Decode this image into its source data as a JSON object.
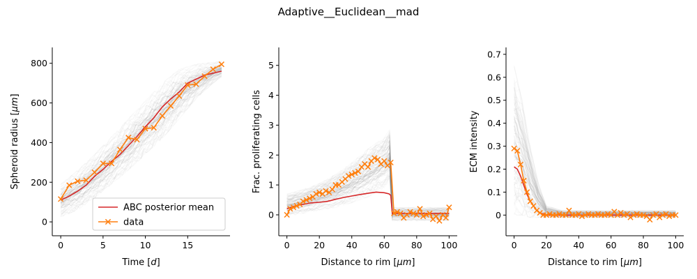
{
  "title": "Adaptive__Euclidean__mad",
  "colors": {
    "posterior_mean": "#d62728",
    "data": "#ff7f0e",
    "samples": "#808080"
  },
  "chart_data": [
    {
      "type": "line",
      "name": "panel-spheroid-radius",
      "xlabel": "Time [d]",
      "ylabel": "Spheroid radius [μm]",
      "xlim": [
        -1,
        20
      ],
      "ylim": [
        -70,
        880
      ],
      "xticks": [
        0,
        5,
        10,
        15
      ],
      "yticks": [
        0,
        200,
        400,
        600,
        800
      ],
      "legend": {
        "placement": "lower-right",
        "entries": [
          "ABC posterior mean",
          "data"
        ]
      },
      "band": {
        "x": [
          0,
          2,
          4,
          6,
          8,
          10,
          12,
          14,
          16,
          18,
          19
        ],
        "low": [
          25,
          60,
          120,
          190,
          260,
          340,
          420,
          520,
          620,
          700,
          730
        ],
        "high": [
          190,
          260,
          340,
          430,
          520,
          610,
          700,
          770,
          795,
          805,
          810
        ]
      },
      "series": [
        {
          "name": "ABC posterior mean",
          "x": [
            0,
            1,
            2,
            3,
            4,
            5,
            6,
            7,
            8,
            9,
            10,
            11,
            12,
            13,
            14,
            15,
            16,
            17,
            18,
            19
          ],
          "values": [
            110,
            130,
            155,
            185,
            230,
            265,
            305,
            340,
            385,
            430,
            480,
            525,
            580,
            620,
            655,
            700,
            720,
            740,
            750,
            760
          ]
        },
        {
          "name": "data",
          "x": [
            0,
            1,
            2,
            3,
            4,
            5,
            6,
            7,
            8,
            9,
            10,
            11,
            12,
            13,
            14,
            15,
            16,
            17,
            18,
            19
          ],
          "values": [
            115,
            185,
            205,
            210,
            250,
            295,
            295,
            365,
            425,
            415,
            470,
            475,
            535,
            585,
            635,
            690,
            695,
            735,
            770,
            795
          ]
        }
      ]
    },
    {
      "type": "line",
      "name": "panel-proliferating-cells",
      "xlabel": "Distance to rim [μm]",
      "ylabel": "Frac. proliferating cells",
      "xlim": [
        -5,
        105
      ],
      "ylim": [
        -0.7,
        5.6
      ],
      "xticks": [
        0,
        20,
        40,
        60,
        80,
        100
      ],
      "yticks": [
        0,
        1,
        2,
        3,
        4,
        5
      ],
      "band": {
        "x": [
          0,
          10,
          20,
          30,
          40,
          50,
          60,
          64,
          65,
          70,
          80,
          90,
          100
        ],
        "low": [
          -0.05,
          0.05,
          0.15,
          0.25,
          0.4,
          0.6,
          0.9,
          1.2,
          -0.2,
          -0.2,
          -0.2,
          -0.2,
          -0.2
        ],
        "high": [
          0.7,
          0.85,
          1.05,
          1.35,
          1.75,
          2.2,
          2.6,
          2.9,
          0.25,
          0.25,
          0.25,
          0.25,
          0.25
        ]
      },
      "series": [
        {
          "name": "ABC posterior mean",
          "x": [
            0,
            5,
            10,
            15,
            20,
            25,
            30,
            35,
            40,
            45,
            50,
            55,
            60,
            63,
            64,
            65,
            70,
            80,
            90,
            100
          ],
          "values": [
            0.2,
            0.3,
            0.35,
            0.4,
            0.42,
            0.45,
            0.52,
            0.58,
            0.63,
            0.68,
            0.72,
            0.76,
            0.74,
            0.7,
            0.65,
            0.05,
            0.05,
            0.05,
            0.05,
            0.05
          ]
        },
        {
          "name": "data",
          "x": [
            0,
            2,
            4,
            6,
            8,
            10,
            12,
            14,
            16,
            18,
            20,
            22,
            24,
            26,
            28,
            30,
            32,
            34,
            36,
            38,
            40,
            42,
            44,
            46,
            48,
            50,
            52,
            54,
            56,
            58,
            60,
            62,
            64,
            66,
            68,
            70,
            72,
            74,
            76,
            78,
            80,
            82,
            84,
            86,
            88,
            90,
            92,
            94,
            96,
            98,
            100
          ],
          "values": [
            0.0,
            0.2,
            0.25,
            0.3,
            0.35,
            0.45,
            0.5,
            0.55,
            0.6,
            0.7,
            0.75,
            0.7,
            0.8,
            0.75,
            0.85,
            1.0,
            1.0,
            1.1,
            1.2,
            1.3,
            1.35,
            1.4,
            1.45,
            1.6,
            1.7,
            1.6,
            1.8,
            1.9,
            1.85,
            1.7,
            1.8,
            1.65,
            1.75,
            0.05,
            0.1,
            0.05,
            -0.1,
            0.0,
            0.1,
            0.05,
            0.0,
            0.2,
            -0.05,
            0.0,
            0.05,
            -0.15,
            -0.05,
            -0.2,
            0.0,
            -0.1,
            0.25
          ]
        }
      ]
    },
    {
      "type": "line",
      "name": "panel-ecm-intensity",
      "xlabel": "Distance to rim [μm]",
      "ylabel": "ECM intensity",
      "xlim": [
        -5,
        105
      ],
      "ylim": [
        -0.09,
        0.73
      ],
      "xticks": [
        0,
        20,
        40,
        60,
        80,
        100
      ],
      "yticks": [
        0.0,
        0.1,
        0.2,
        0.3,
        0.4,
        0.5,
        0.6,
        0.7
      ],
      "band": {
        "x": [
          0,
          5,
          10,
          15,
          20,
          30,
          50,
          70,
          100
        ],
        "low": [
          0.0,
          0.0,
          -0.01,
          -0.01,
          -0.01,
          -0.01,
          -0.01,
          -0.01,
          -0.01
        ],
        "high": [
          0.65,
          0.5,
          0.3,
          0.14,
          0.04,
          0.02,
          0.02,
          0.02,
          0.02
        ]
      },
      "series": [
        {
          "name": "ABC posterior mean",
          "x": [
            0,
            2,
            4,
            6,
            8,
            10,
            12,
            14,
            16,
            18,
            20,
            30,
            40,
            60,
            80,
            100
          ],
          "values": [
            0.21,
            0.2,
            0.17,
            0.13,
            0.09,
            0.06,
            0.04,
            0.02,
            0.01,
            0.005,
            0.0,
            0.0,
            0.0,
            0.0,
            0.0,
            0.0
          ]
        },
        {
          "name": "data",
          "x": [
            0,
            2,
            4,
            6,
            8,
            10,
            12,
            14,
            16,
            18,
            20,
            22,
            24,
            26,
            28,
            30,
            32,
            34,
            36,
            38,
            40,
            42,
            44,
            46,
            48,
            50,
            52,
            54,
            56,
            58,
            60,
            62,
            64,
            66,
            68,
            70,
            72,
            74,
            76,
            78,
            80,
            82,
            84,
            86,
            88,
            90,
            92,
            94,
            96,
            98,
            100
          ],
          "values": [
            0.29,
            0.28,
            0.22,
            0.15,
            0.1,
            0.06,
            0.04,
            0.02,
            0.01,
            0.0,
            0.0,
            0.005,
            0.0,
            0.0,
            0.005,
            0.0,
            0.0,
            0.02,
            0.0,
            0.0,
            0.005,
            -0.005,
            0.0,
            0.005,
            0.0,
            0.0,
            0.005,
            0.0,
            0.0,
            0.005,
            0.0,
            0.015,
            0.0,
            0.01,
            0.0,
            0.005,
            -0.01,
            0.0,
            0.005,
            0.0,
            0.0,
            -0.005,
            -0.02,
            0.0,
            0.005,
            -0.01,
            0.0,
            0.005,
            -0.005,
            0.0,
            0.0
          ]
        }
      ]
    }
  ]
}
